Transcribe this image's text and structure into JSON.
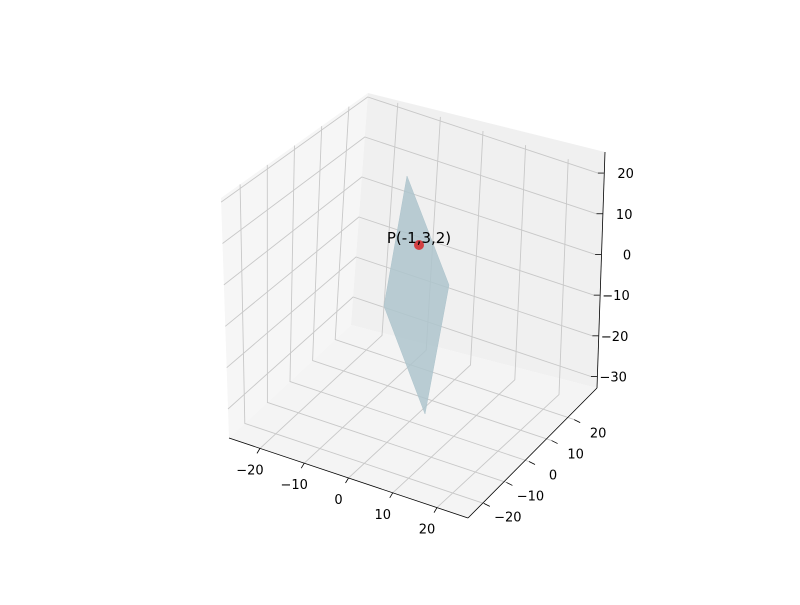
{
  "chart_data": {
    "type": "surface3d",
    "title": "",
    "xlabel": "",
    "ylabel": "",
    "zlabel": "",
    "xlim": [
      -27,
      27
    ],
    "ylim": [
      -27,
      27
    ],
    "zlim": [
      -37,
      21
    ],
    "x_ticks": [
      -20,
      -10,
      0,
      10,
      20
    ],
    "y_ticks": [
      -20,
      -10,
      0,
      10,
      20
    ],
    "z_ticks": [
      -30,
      -20,
      -10,
      0,
      10,
      20
    ],
    "grid": true,
    "point": {
      "label": "P(-1,3,2)",
      "x": -1,
      "y": 3,
      "z": 2,
      "color": "#d62728"
    },
    "surface": {
      "description_color": "#b0c4cc"
    },
    "colors": {
      "pane_back": "#f0f0f0",
      "pane_side": "#f6f6f6",
      "pane_floor": "#f4f4f4",
      "grid": "#c8c8c8",
      "surface": "#aec4cc",
      "point": "#d62728"
    }
  }
}
